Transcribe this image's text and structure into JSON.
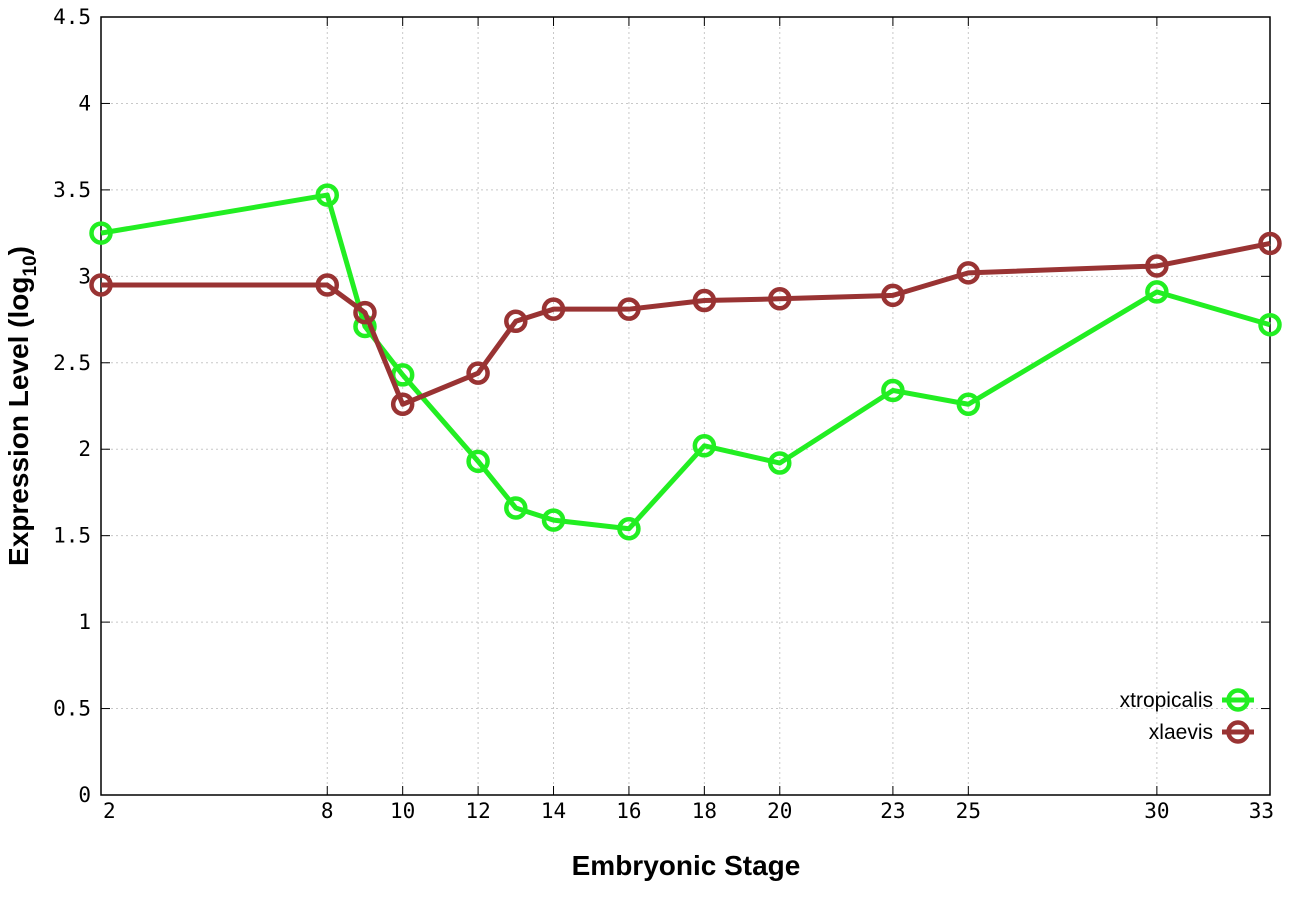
{
  "chart_data": {
    "type": "line",
    "xlabel": "Embryonic Stage",
    "ylabel_main": "Expression Level (log",
    "ylabel_sub": "10",
    "ylabel_close": ")",
    "ylim": [
      0,
      4.5
    ],
    "yticks": [
      "0",
      "0.5",
      "1",
      "1.5",
      "2",
      "2.5",
      "3",
      "3.5",
      "4",
      "4.5"
    ],
    "categories": [
      "2",
      "8",
      "9",
      "10",
      "12",
      "13",
      "14",
      "16",
      "18",
      "20",
      "23",
      "25",
      "30",
      "33"
    ],
    "x_tick_labels": [
      "2",
      "8",
      "10",
      "12",
      "14",
      "16",
      "18",
      "20",
      "23",
      "25",
      "30",
      "33"
    ],
    "grid": true,
    "legend_position": "bottom-right",
    "series": [
      {
        "name": "xtropicalis",
        "color": "#22ee22",
        "values": [
          3.25,
          3.47,
          2.71,
          2.43,
          1.93,
          1.66,
          1.59,
          1.54,
          2.02,
          1.92,
          2.34,
          2.26,
          2.91,
          2.72
        ]
      },
      {
        "name": "xlaevis",
        "color": "#993333",
        "values": [
          2.95,
          2.95,
          2.79,
          2.26,
          2.44,
          2.74,
          2.81,
          2.81,
          2.86,
          2.87,
          2.89,
          3.02,
          3.06,
          3.19
        ]
      }
    ]
  }
}
